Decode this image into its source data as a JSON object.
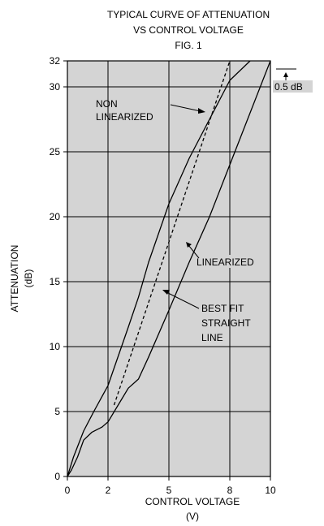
{
  "chart_data": {
    "type": "line",
    "title": [
      "TYPICAL CURVE OF ATTENUATION",
      "VS CONTROL VOLTAGE"
    ],
    "subtitle": "FIG. 1",
    "xlabel": "CONTROL VOLTAGE",
    "xlabel_unit": "(V)",
    "ylabel": "ATTENUATION",
    "ylabel_unit": "(dB)",
    "xlim": [
      0,
      10
    ],
    "ylim": [
      0,
      32
    ],
    "x_ticks": [
      0,
      2,
      5,
      8,
      10
    ],
    "y_ticks": [
      0,
      5,
      10,
      15,
      20,
      25,
      30,
      32
    ],
    "grid": true,
    "background": "#d4d4d4",
    "series": [
      {
        "name": "NON LINEARIZED",
        "style": "solid",
        "points": [
          [
            0,
            0
          ],
          [
            0.3,
            1.5
          ],
          [
            0.8,
            3.5
          ],
          [
            1.3,
            5.0
          ],
          [
            2.0,
            7.0
          ],
          [
            3.0,
            11.5
          ],
          [
            3.5,
            13.8
          ],
          [
            4.0,
            16.5
          ],
          [
            5.0,
            21.0
          ],
          [
            6.0,
            24.5
          ],
          [
            7.0,
            27.5
          ],
          [
            7.5,
            29.0
          ],
          [
            8.0,
            30.5
          ],
          [
            9.0,
            32
          ]
        ]
      },
      {
        "name": "LINEARIZED",
        "style": "solid",
        "points": [
          [
            0,
            0
          ],
          [
            0.2,
            0.5
          ],
          [
            0.5,
            1.5
          ],
          [
            0.8,
            2.8
          ],
          [
            1.2,
            3.4
          ],
          [
            1.7,
            3.8
          ],
          [
            2.0,
            4.2
          ],
          [
            2.5,
            5.5
          ],
          [
            3.0,
            6.8
          ],
          [
            3.5,
            7.5
          ],
          [
            4.0,
            9.2
          ],
          [
            5.0,
            12.8
          ],
          [
            6.0,
            16.5
          ],
          [
            7.0,
            20.0
          ],
          [
            8.0,
            24.0
          ],
          [
            9.0,
            28.0
          ],
          [
            10.0,
            32
          ]
        ]
      },
      {
        "name": "BEST FIT STRAIGHT LINE",
        "style": "dashed",
        "points": [
          [
            2.3,
            5.5
          ],
          [
            8.0,
            32
          ]
        ]
      }
    ],
    "annotations": {
      "nonlinearized": [
        "NON",
        "LINEARIZED"
      ],
      "linearized": "LINEARIZED",
      "bestfit": [
        "BEST FIT",
        "STRAIGHT",
        "LINE"
      ],
      "delta": "0.5 dB"
    }
  }
}
